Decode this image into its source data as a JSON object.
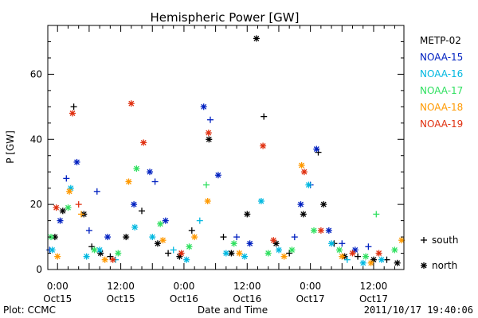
{
  "chart_data": {
    "type": "scatter",
    "title": "Hemispheric Power [GW]",
    "ylabel": "P [GW]",
    "xlabel": "Date and Time",
    "ylim": [
      0,
      75
    ],
    "xlim": [
      "2011-10-14T22:09",
      "2011-10-17T17:45"
    ],
    "yticks": [
      0,
      20,
      40,
      60
    ],
    "xticks": [
      {
        "t": "2011-10-15T00:00",
        "line1": "0:00",
        "line2": "Oct15"
      },
      {
        "t": "2011-10-15T12:00",
        "line1": "12:00",
        "line2": "Oct15"
      },
      {
        "t": "2011-10-16T00:00",
        "line1": "0:00",
        "line2": "Oct16"
      },
      {
        "t": "2011-10-16T12:00",
        "line1": "12:00",
        "line2": "Oct16"
      },
      {
        "t": "2011-10-17T00:00",
        "line1": "0:00",
        "line2": "Oct17"
      },
      {
        "t": "2011-10-17T12:00",
        "line1": "12:00",
        "line2": "Oct17"
      }
    ],
    "marker_legend": [
      {
        "marker": "+",
        "label": "south"
      },
      {
        "marker": "*",
        "label": "north"
      }
    ],
    "series": [
      {
        "name": "METP-02",
        "color": "#000000",
        "points": [
          {
            "t": "2011-10-14T23:30",
            "y": 10,
            "m": "*"
          },
          {
            "t": "2011-10-15T01:00",
            "y": 18,
            "m": "*"
          },
          {
            "t": "2011-10-15T03:05",
            "y": 50,
            "m": "+"
          },
          {
            "t": "2011-10-15T05:00",
            "y": 17,
            "m": "*"
          },
          {
            "t": "2011-10-15T06:30",
            "y": 7,
            "m": "+"
          },
          {
            "t": "2011-10-15T08:10",
            "y": 5,
            "m": "*"
          },
          {
            "t": "2011-10-15T10:00",
            "y": 4,
            "m": "+"
          },
          {
            "t": "2011-10-15T13:00",
            "y": 10,
            "m": "*"
          },
          {
            "t": "2011-10-15T16:00",
            "y": 18,
            "m": "+"
          },
          {
            "t": "2011-10-15T19:00",
            "y": 8,
            "m": "*"
          },
          {
            "t": "2011-10-15T21:00",
            "y": 5,
            "m": "+"
          },
          {
            "t": "2011-10-15T23:10",
            "y": 4,
            "m": "*"
          },
          {
            "t": "2011-10-16T01:30",
            "y": 12,
            "m": "+"
          },
          {
            "t": "2011-10-16T04:45",
            "y": 40,
            "m": "*"
          },
          {
            "t": "2011-10-16T07:30",
            "y": 10,
            "m": "+"
          },
          {
            "t": "2011-10-16T09:00",
            "y": 5,
            "m": "*"
          },
          {
            "t": "2011-10-16T12:00",
            "y": 17,
            "m": "*"
          },
          {
            "t": "2011-10-16T13:45",
            "y": 71,
            "m": "*"
          },
          {
            "t": "2011-10-16T15:10",
            "y": 47,
            "m": "+"
          },
          {
            "t": "2011-10-16T17:30",
            "y": 8,
            "m": "*"
          },
          {
            "t": "2011-10-16T20:00",
            "y": 5,
            "m": "+"
          },
          {
            "t": "2011-10-16T22:40",
            "y": 17,
            "m": "*"
          },
          {
            "t": "2011-10-17T01:30",
            "y": 36,
            "m": "+"
          },
          {
            "t": "2011-10-17T02:30",
            "y": 20,
            "m": "*"
          },
          {
            "t": "2011-10-17T04:30",
            "y": 8,
            "m": "+"
          },
          {
            "t": "2011-10-17T06:30",
            "y": 4,
            "m": "*"
          },
          {
            "t": "2011-10-17T09:00",
            "y": 4,
            "m": "+"
          },
          {
            "t": "2011-10-17T12:00",
            "y": 3,
            "m": "*"
          },
          {
            "t": "2011-10-17T14:30",
            "y": 3,
            "m": "+"
          },
          {
            "t": "2011-10-17T16:30",
            "y": 2,
            "m": "*"
          }
        ]
      },
      {
        "name": "NOAA-15",
        "color": "#0020c0",
        "points": [
          {
            "t": "2011-10-14T22:30",
            "y": 6,
            "m": "+"
          },
          {
            "t": "2011-10-15T00:30",
            "y": 15,
            "m": "*"
          },
          {
            "t": "2011-10-15T01:40",
            "y": 28,
            "m": "+"
          },
          {
            "t": "2011-10-15T03:40",
            "y": 33,
            "m": "*"
          },
          {
            "t": "2011-10-15T06:00",
            "y": 12,
            "m": "+"
          },
          {
            "t": "2011-10-15T07:30",
            "y": 24,
            "m": "+"
          },
          {
            "t": "2011-10-15T09:30",
            "y": 10,
            "m": "*"
          },
          {
            "t": "2011-10-15T14:30",
            "y": 20,
            "m": "*"
          },
          {
            "t": "2011-10-15T17:30",
            "y": 30,
            "m": "*"
          },
          {
            "t": "2011-10-15T18:30",
            "y": 27,
            "m": "+"
          },
          {
            "t": "2011-10-15T20:30",
            "y": 15,
            "m": "*"
          },
          {
            "t": "2011-10-16T03:45",
            "y": 50,
            "m": "*"
          },
          {
            "t": "2011-10-16T05:00",
            "y": 46,
            "m": "+"
          },
          {
            "t": "2011-10-16T06:30",
            "y": 29,
            "m": "*"
          },
          {
            "t": "2011-10-16T10:00",
            "y": 10,
            "m": "+"
          },
          {
            "t": "2011-10-16T12:30",
            "y": 8,
            "m": "*"
          },
          {
            "t": "2011-10-16T21:00",
            "y": 10,
            "m": "+"
          },
          {
            "t": "2011-10-16T22:10",
            "y": 20,
            "m": "*"
          },
          {
            "t": "2011-10-17T00:00",
            "y": 26,
            "m": "+"
          },
          {
            "t": "2011-10-17T01:10",
            "y": 37,
            "m": "*"
          },
          {
            "t": "2011-10-17T03:30",
            "y": 12,
            "m": "*"
          },
          {
            "t": "2011-10-17T06:00",
            "y": 8,
            "m": "+"
          },
          {
            "t": "2011-10-17T08:30",
            "y": 6,
            "m": "*"
          },
          {
            "t": "2011-10-17T11:00",
            "y": 7,
            "m": "+"
          }
        ]
      },
      {
        "name": "NOAA-16",
        "color": "#00b8e0",
        "points": [
          {
            "t": "2011-10-14T23:00",
            "y": 6,
            "m": "*"
          },
          {
            "t": "2011-10-15T02:30",
            "y": 25,
            "m": "*"
          },
          {
            "t": "2011-10-15T05:30",
            "y": 4,
            "m": "*"
          },
          {
            "t": "2011-10-15T08:00",
            "y": 6,
            "m": "*"
          },
          {
            "t": "2011-10-15T11:00",
            "y": 3,
            "m": "+"
          },
          {
            "t": "2011-10-15T14:40",
            "y": 13,
            "m": "*"
          },
          {
            "t": "2011-10-15T18:00",
            "y": 10,
            "m": "*"
          },
          {
            "t": "2011-10-15T22:00",
            "y": 6,
            "m": "+"
          },
          {
            "t": "2011-10-16T00:30",
            "y": 3,
            "m": "*"
          },
          {
            "t": "2011-10-16T03:00",
            "y": 15,
            "m": "+"
          },
          {
            "t": "2011-10-16T08:00",
            "y": 5,
            "m": "*"
          },
          {
            "t": "2011-10-16T11:30",
            "y": 4,
            "m": "*"
          },
          {
            "t": "2011-10-16T14:40",
            "y": 21,
            "m": "*"
          },
          {
            "t": "2011-10-16T18:00",
            "y": 6,
            "m": "*"
          },
          {
            "t": "2011-10-16T23:40",
            "y": 26,
            "m": "*"
          },
          {
            "t": "2011-10-17T04:00",
            "y": 8,
            "m": "*"
          },
          {
            "t": "2011-10-17T07:00",
            "y": 3,
            "m": "+"
          },
          {
            "t": "2011-10-17T10:00",
            "y": 2,
            "m": "*"
          },
          {
            "t": "2011-10-17T13:30",
            "y": 3,
            "m": "*"
          }
        ]
      },
      {
        "name": "NOAA-17",
        "color": "#30e060",
        "points": [
          {
            "t": "2011-10-14T22:45",
            "y": 10,
            "m": "*"
          },
          {
            "t": "2011-10-15T02:00",
            "y": 19,
            "m": "*"
          },
          {
            "t": "2011-10-15T07:00",
            "y": 6,
            "m": "*"
          },
          {
            "t": "2011-10-15T11:30",
            "y": 5,
            "m": "*"
          },
          {
            "t": "2011-10-15T15:00",
            "y": 31,
            "m": "*"
          },
          {
            "t": "2011-10-15T19:30",
            "y": 14,
            "m": "*"
          },
          {
            "t": "2011-10-16T01:00",
            "y": 7,
            "m": "*"
          },
          {
            "t": "2011-10-16T04:15",
            "y": 26,
            "m": "+"
          },
          {
            "t": "2011-10-16T09:30",
            "y": 8,
            "m": "*"
          },
          {
            "t": "2011-10-16T16:00",
            "y": 5,
            "m": "*"
          },
          {
            "t": "2011-10-16T20:30",
            "y": 6,
            "m": "*"
          },
          {
            "t": "2011-10-17T00:40",
            "y": 12,
            "m": "*"
          },
          {
            "t": "2011-10-17T05:30",
            "y": 6,
            "m": "*"
          },
          {
            "t": "2011-10-17T10:30",
            "y": 4,
            "m": "*"
          },
          {
            "t": "2011-10-17T12:30",
            "y": 17,
            "m": "+"
          },
          {
            "t": "2011-10-17T16:00",
            "y": 6,
            "m": "*"
          }
        ]
      },
      {
        "name": "NOAA-18",
        "color": "#ff9900",
        "points": [
          {
            "t": "2011-10-15T00:00",
            "y": 4,
            "m": "*"
          },
          {
            "t": "2011-10-15T02:15",
            "y": 24,
            "m": "*"
          },
          {
            "t": "2011-10-15T04:30",
            "y": 17,
            "m": "+"
          },
          {
            "t": "2011-10-15T09:00",
            "y": 3,
            "m": "*"
          },
          {
            "t": "2011-10-15T13:30",
            "y": 27,
            "m": "*"
          },
          {
            "t": "2011-10-15T20:00",
            "y": 9,
            "m": "*"
          },
          {
            "t": "2011-10-16T02:00",
            "y": 10,
            "m": "*"
          },
          {
            "t": "2011-10-16T04:30",
            "y": 21,
            "m": "*"
          },
          {
            "t": "2011-10-16T10:30",
            "y": 5,
            "m": "*"
          },
          {
            "t": "2011-10-16T19:00",
            "y": 4,
            "m": "*"
          },
          {
            "t": "2011-10-16T22:20",
            "y": 32,
            "m": "*"
          },
          {
            "t": "2011-10-17T06:00",
            "y": 4,
            "m": "*"
          },
          {
            "t": "2011-10-17T11:30",
            "y": 2,
            "m": "*"
          },
          {
            "t": "2011-10-17T17:20",
            "y": 9,
            "m": "*"
          }
        ]
      },
      {
        "name": "NOAA-19",
        "color": "#e03010",
        "points": [
          {
            "t": "2011-10-14T23:45",
            "y": 19,
            "m": "*"
          },
          {
            "t": "2011-10-15T02:50",
            "y": 48,
            "m": "*"
          },
          {
            "t": "2011-10-15T04:00",
            "y": 20,
            "m": "+"
          },
          {
            "t": "2011-10-15T10:30",
            "y": 3,
            "m": "*"
          },
          {
            "t": "2011-10-15T14:00",
            "y": 51,
            "m": "*"
          },
          {
            "t": "2011-10-15T16:20",
            "y": 39,
            "m": "*"
          },
          {
            "t": "2011-10-15T23:30",
            "y": 5,
            "m": "*"
          },
          {
            "t": "2011-10-16T04:40",
            "y": 42,
            "m": "*"
          },
          {
            "t": "2011-10-16T15:00",
            "y": 38,
            "m": "*"
          },
          {
            "t": "2011-10-16T17:00",
            "y": 9,
            "m": "*"
          },
          {
            "t": "2011-10-16T22:50",
            "y": 30,
            "m": "*"
          },
          {
            "t": "2011-10-17T02:00",
            "y": 12,
            "m": "*"
          },
          {
            "t": "2011-10-17T08:00",
            "y": 5,
            "m": "*"
          },
          {
            "t": "2011-10-17T13:00",
            "y": 5,
            "m": "*"
          }
        ]
      }
    ]
  },
  "footer": {
    "left": "Plot: CCMC",
    "center": "Date and Time",
    "right": "2011/10/17 19:40:06"
  }
}
